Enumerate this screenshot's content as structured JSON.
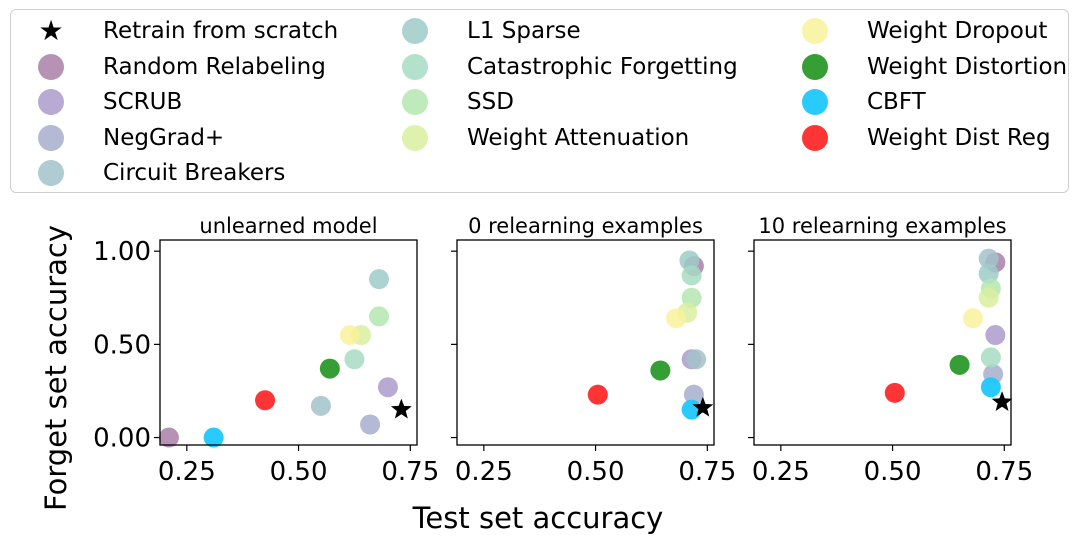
{
  "legend": [
    {
      "name": "Retrain from scratch",
      "color": "#000000",
      "marker": "star",
      "alpha": 1
    },
    {
      "name": "Random Relabeling",
      "color": "#a980a8",
      "marker": "circle",
      "alpha": 0.85
    },
    {
      "name": "SCRUB",
      "color": "#ab9bca",
      "marker": "circle",
      "alpha": 0.85
    },
    {
      "name": "NegGrad+",
      "color": "#a7aecb",
      "marker": "circle",
      "alpha": 0.85
    },
    {
      "name": "Circuit Breakers",
      "color": "#a3c2cb",
      "marker": "circle",
      "alpha": 0.85
    },
    {
      "name": "L1 Sparse",
      "color": "#9fcbc9",
      "marker": "circle",
      "alpha": 0.85
    },
    {
      "name": "Catastrophic Forgetting",
      "color": "#a6dcc3",
      "marker": "circle",
      "alpha": 0.85
    },
    {
      "name": "SSD",
      "color": "#b3e6b0",
      "marker": "circle",
      "alpha": 0.85
    },
    {
      "name": "Weight Attenuation",
      "color": "#d8ee9f",
      "marker": "circle",
      "alpha": 0.85
    },
    {
      "name": "Weight Dropout",
      "color": "#f8f29a",
      "marker": "circle",
      "alpha": 0.85
    },
    {
      "name": "Weight Distortion",
      "color": "#2a9a2a",
      "marker": "circle",
      "alpha": 0.95
    },
    {
      "name": "CBFT",
      "color": "#1ec8ff",
      "marker": "circle",
      "alpha": 0.95
    },
    {
      "name": "Weight Dist Reg",
      "color": "#ff2a2a",
      "marker": "circle",
      "alpha": 0.95
    }
  ],
  "chart_data": {
    "type": "scatter",
    "xlabel": "Test set accuracy",
    "ylabel": "Forget set accuracy",
    "xlim": [
      0.19,
      0.765
    ],
    "ylim": [
      -0.04,
      1.06
    ],
    "xticks": [
      "0.25",
      "0.50",
      "0.75"
    ],
    "xtick_values": [
      0.25,
      0.5,
      0.75
    ],
    "yticks": [
      "0.00",
      "0.50",
      "1.00"
    ],
    "ytick_values": [
      0.0,
      0.5,
      1.0
    ],
    "grid": false,
    "legend_position": "top",
    "panels": [
      {
        "title": "unlearned model",
        "points": {
          "Random Relabeling": [
            0.21,
            0.0
          ],
          "SCRUB": [
            0.7,
            0.27
          ],
          "NegGrad+": [
            0.66,
            0.07
          ],
          "Circuit Breakers": [
            0.55,
            0.17
          ],
          "L1 Sparse": [
            0.68,
            0.85
          ],
          "Catastrophic Forgetting": [
            0.625,
            0.42
          ],
          "SSD": [
            0.68,
            0.65
          ],
          "Weight Attenuation": [
            0.64,
            0.55
          ],
          "Weight Dropout": [
            0.615,
            0.55
          ],
          "Weight Distortion": [
            0.57,
            0.37
          ],
          "CBFT": [
            0.31,
            0.0
          ],
          "Weight Dist Reg": [
            0.425,
            0.2
          ],
          "Retrain from scratch": [
            0.73,
            0.15
          ]
        }
      },
      {
        "title": "0 relearning examples",
        "points": {
          "Random Relabeling": [
            0.72,
            0.92
          ],
          "SCRUB": [
            0.715,
            0.42
          ],
          "NegGrad+": [
            0.72,
            0.23
          ],
          "Circuit Breakers": [
            0.725,
            0.42
          ],
          "L1 Sparse": [
            0.71,
            0.95
          ],
          "Catastrophic Forgetting": [
            0.715,
            0.87
          ],
          "SSD": [
            0.715,
            0.75
          ],
          "Weight Attenuation": [
            0.705,
            0.67
          ],
          "Weight Dropout": [
            0.68,
            0.64
          ],
          "Weight Distortion": [
            0.645,
            0.36
          ],
          "CBFT": [
            0.715,
            0.15
          ],
          "Weight Dist Reg": [
            0.505,
            0.23
          ],
          "Retrain from scratch": [
            0.74,
            0.16
          ]
        }
      },
      {
        "title": "10 relearning examples",
        "points": {
          "Random Relabeling": [
            0.73,
            0.94
          ],
          "SCRUB": [
            0.73,
            0.55
          ],
          "NegGrad+": [
            0.725,
            0.34
          ],
          "Circuit Breakers": [
            0.715,
            0.96
          ],
          "L1 Sparse": [
            0.715,
            0.88
          ],
          "Catastrophic Forgetting": [
            0.72,
            0.43
          ],
          "SSD": [
            0.72,
            0.8
          ],
          "Weight Attenuation": [
            0.715,
            0.75
          ],
          "Weight Dropout": [
            0.68,
            0.64
          ],
          "Weight Distortion": [
            0.65,
            0.39
          ],
          "CBFT": [
            0.72,
            0.27
          ],
          "Weight Dist Reg": [
            0.505,
            0.24
          ],
          "Retrain from scratch": [
            0.745,
            0.19
          ]
        }
      }
    ]
  }
}
